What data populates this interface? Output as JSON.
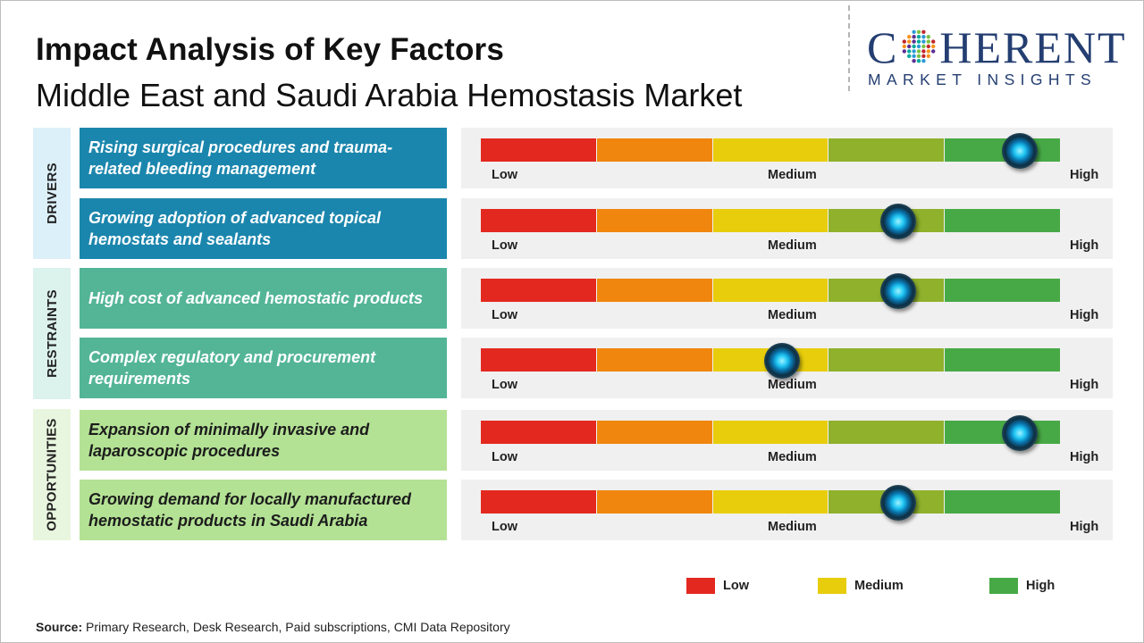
{
  "title": "Impact Analysis of Key Factors",
  "subtitle": "Middle East and Saudi Arabia Hemostasis Market",
  "logo": {
    "main_left": "C",
    "main_right": "HERENT",
    "sub": "MARKET INSIGHTS"
  },
  "groups": {
    "drivers": "DRIVERS",
    "restraints": "RESTRAINTS",
    "opportunities": "OPPORTUNITIES"
  },
  "scale_labels": {
    "low": "Low",
    "medium": "Medium",
    "high": "High"
  },
  "segment_colors": [
    "#e3291f",
    "#f0860e",
    "#e8cd0c",
    "#8fb12c",
    "#47a946"
  ],
  "legend": [
    {
      "label": "Low",
      "color": "#e3291f"
    },
    {
      "label": "Medium",
      "color": "#e8cd0c"
    },
    {
      "label": "High",
      "color": "#47a946"
    }
  ],
  "chart_data": {
    "type": "bar",
    "scale_min": 0,
    "scale_max": 1,
    "factors": [
      {
        "group": "DRIVERS",
        "label": "Rising surgical procedures and trauma-related bleeding management",
        "impact": 0.93
      },
      {
        "group": "DRIVERS",
        "label": "Growing adoption of advanced topical hemostats and sealants",
        "impact": 0.72
      },
      {
        "group": "RESTRAINTS",
        "label": "High cost of advanced hemostatic products",
        "impact": 0.72
      },
      {
        "group": "RESTRAINTS",
        "label": "Complex regulatory and procurement requirements",
        "impact": 0.52
      },
      {
        "group": "OPPORTUNITIES",
        "label": "Expansion of minimally invasive and laparoscopic procedures",
        "impact": 0.93
      },
      {
        "group": "OPPORTUNITIES",
        "label": "Growing demand for locally manufactured hemostatic products in Saudi Arabia",
        "impact": 0.72
      }
    ]
  },
  "source": {
    "label": "Source:",
    "text": "Primary Research, Desk Research, Paid subscriptions, CMI Data Repository"
  }
}
